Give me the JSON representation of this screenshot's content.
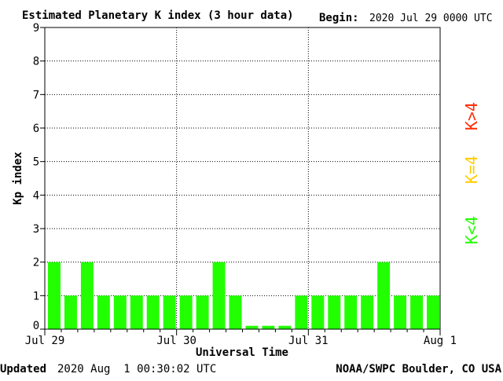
{
  "header": {
    "title": "Estimated Planetary K index (3 hour data)",
    "begin_label": "Begin:",
    "begin_value": "2020 Jul 29 0000 UTC"
  },
  "footer": {
    "updated_label": "Updated",
    "updated_value": "2020 Aug  1 00:30:02 UTC",
    "source": "NOAA/SWPC Boulder, CO USA"
  },
  "legend": [
    {
      "label": "K>4",
      "color": "#ff2a00"
    },
    {
      "label": "K=4",
      "color": "#ffcc00"
    },
    {
      "label": "K<4",
      "color": "#22ff00"
    }
  ],
  "chart_data": {
    "type": "bar",
    "title": "Estimated Planetary K index (3 hour data)",
    "xlabel": "Universal Time",
    "ylabel": "Kp index",
    "ylim": [
      0,
      9
    ],
    "yticks": [
      "0",
      "1",
      "2",
      "3",
      "4",
      "5",
      "6",
      "7",
      "8",
      "9"
    ],
    "xtick_labels": [
      "Jul 29",
      "Jul 30",
      "Jul 31",
      "Aug 1"
    ],
    "bar_color": "#22ff00",
    "grid": true,
    "categories": [
      "Jul 29 00",
      "Jul 29 03",
      "Jul 29 06",
      "Jul 29 09",
      "Jul 29 12",
      "Jul 29 15",
      "Jul 29 18",
      "Jul 29 21",
      "Jul 30 00",
      "Jul 30 03",
      "Jul 30 06",
      "Jul 30 09",
      "Jul 30 12",
      "Jul 30 15",
      "Jul 30 18",
      "Jul 30 21",
      "Jul 31 00",
      "Jul 31 03",
      "Jul 31 06",
      "Jul 31 09",
      "Jul 31 12",
      "Jul 31 15",
      "Jul 31 18",
      "Jul 31 21"
    ],
    "values": [
      2,
      1,
      2,
      1,
      1,
      1,
      1,
      1,
      1,
      1,
      2,
      1,
      0.1,
      0.1,
      0.1,
      1,
      1,
      1,
      1,
      1,
      2,
      1,
      1,
      1
    ]
  }
}
